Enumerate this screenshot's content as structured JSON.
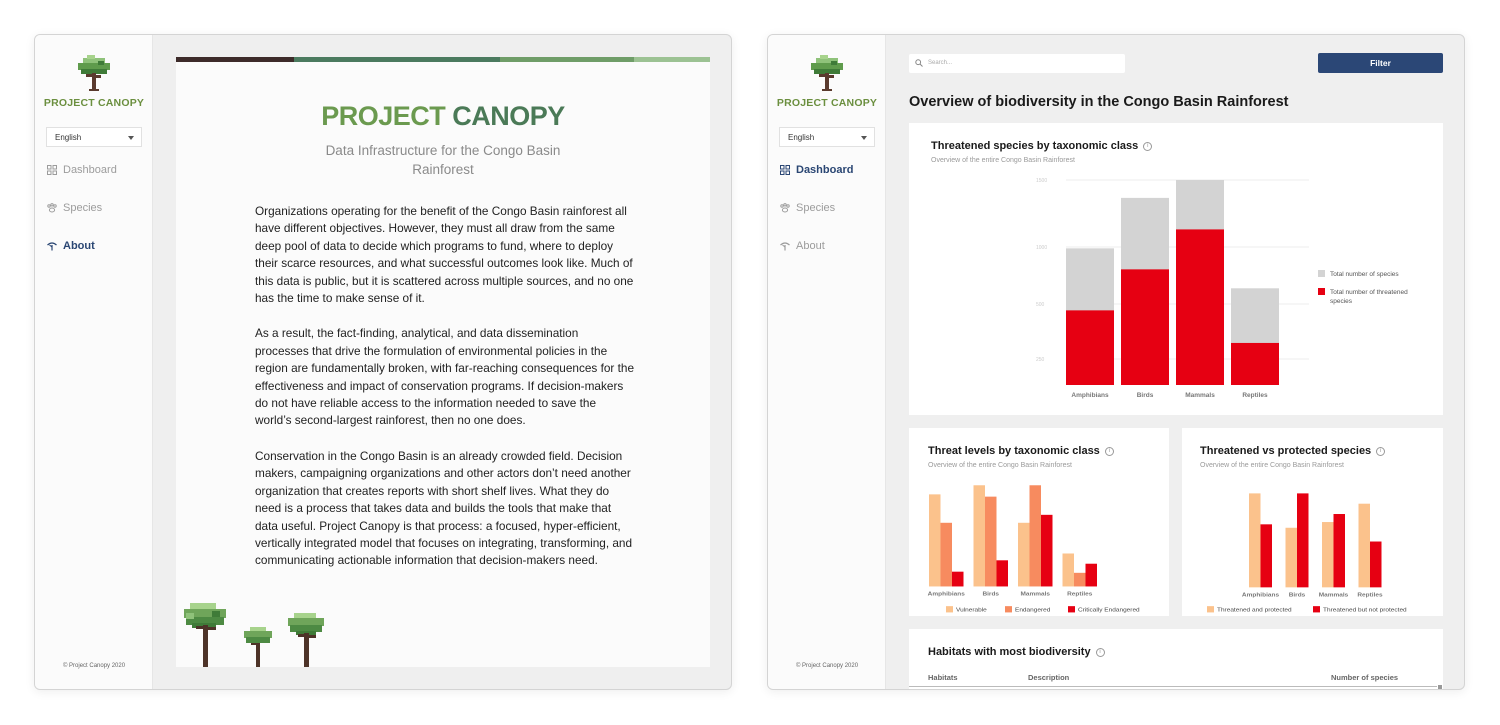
{
  "about_window": {
    "sidebar": {
      "logo_text": "PROJECT CANOPY",
      "language": "English",
      "nav": [
        "Dashboard",
        "Species",
        "About"
      ],
      "footer": "© Project Canopy 2020"
    },
    "color_bar": [
      "#3d2b2a",
      "#4b7a5f",
      "#6f9d68",
      "#9cc293"
    ],
    "title_part1": "PROJECT",
    "title_part2": "CANOPY",
    "subtitle": "Data Infrastructure for the Congo Basin Rainforest",
    "paragraphs": [
      "Organizations operating for the benefit of the Congo Basin rainforest all have different objectives. However, they must all draw from the same deep pool of data to decide which programs to fund, where to deploy their scarce resources, and what successful outcomes look like. Much of this data is public, but it is scattered across multiple sources, and no one has the time to make sense of it.",
      "As a result, the fact-finding, analytical, and data dissemination processes that drive the formulation of environmental policies in the region are fundamentally broken, with far-reaching consequences for the effectiveness and impact of conservation programs. If decision-makers do not have reliable access to the information needed to save the world’s second-largest rainforest, then no one does.",
      "Conservation in the Congo Basin is an already crowded field. Decision makers, campaigning organizations and other actors don’t need another organization that creates reports with short shelf lives. What they do need is a process that takes data and builds the tools that make that data useful. Project Canopy is that process: a focused, hyper-efficient, vertically integrated model that focuses on integrating, transforming, and communicating actionable information that decision-makers need."
    ]
  },
  "dashboard_window": {
    "sidebar": {
      "logo_text": "PROJECT CANOPY",
      "language": "English",
      "nav": [
        "Dashboard",
        "Species",
        "About"
      ],
      "footer": "© Project Canopy 2020"
    },
    "search_placeholder": "Search...",
    "filter_label": "Filter",
    "page_title": "Overview of biodiversity in the Congo Basin Rainforest",
    "table": {
      "title": "Habitats with most biodiversity",
      "columns": [
        "Habitats",
        "Description",
        "Number of species"
      ]
    }
  },
  "colors": {
    "accent_blue": "#2b4776",
    "grey": "#d3d3d3",
    "red": "#e60012",
    "light_orange": "#fbc28c",
    "orange": "#f78b5f",
    "logo_green": "#6b8f3f"
  },
  "chart_data": [
    {
      "type": "bar",
      "title": "Threatened species by taxonomic class",
      "subtitle": "Overview of the entire Congo Basin Rainforest",
      "stacked": true,
      "categories": [
        "Amphibians",
        "Birds",
        "Mammals",
        "Reptiles"
      ],
      "series": [
        {
          "name": "Total number of species",
          "values": [
            1300,
            1780,
            1950,
            920
          ],
          "color": "#d3d3d3"
        },
        {
          "name": "Total number of threatened species",
          "values": [
            710,
            1100,
            1480,
            400
          ],
          "color": "#e60012"
        }
      ],
      "y_ticks": [
        "1500",
        "1000",
        "500",
        "250"
      ],
      "legend_position": "right"
    },
    {
      "type": "bar",
      "title": "Threat levels by taxonomic class",
      "subtitle": "Overview of the entire Congo Basin Rainforest",
      "categories": [
        "Amphibians",
        "Birds",
        "Mammals",
        "Reptiles"
      ],
      "series": [
        {
          "name": "Vulnerable",
          "values": [
            81,
            89,
            56,
            29
          ],
          "color": "#fbc28c"
        },
        {
          "name": "Endangered",
          "values": [
            56,
            79,
            89,
            12
          ],
          "color": "#f78b5f"
        },
        {
          "name": "Critically Endangered",
          "values": [
            13,
            23,
            63,
            20
          ],
          "color": "#e60012"
        }
      ],
      "legend_position": "bottom"
    },
    {
      "type": "bar",
      "title": "Threatened vs protected species",
      "subtitle": "Overview of the entire Congo Basin Rainforest",
      "categories": [
        "Amphibians",
        "Birds",
        "Mammals",
        "Reptiles"
      ],
      "series": [
        {
          "name": "Threatened and protected",
          "values": [
            82,
            52,
            57,
            73
          ],
          "color": "#fbc28c"
        },
        {
          "name": "Threatened but not protected",
          "values": [
            55,
            82,
            64,
            40
          ],
          "color": "#e60012"
        }
      ],
      "legend_position": "bottom"
    }
  ]
}
